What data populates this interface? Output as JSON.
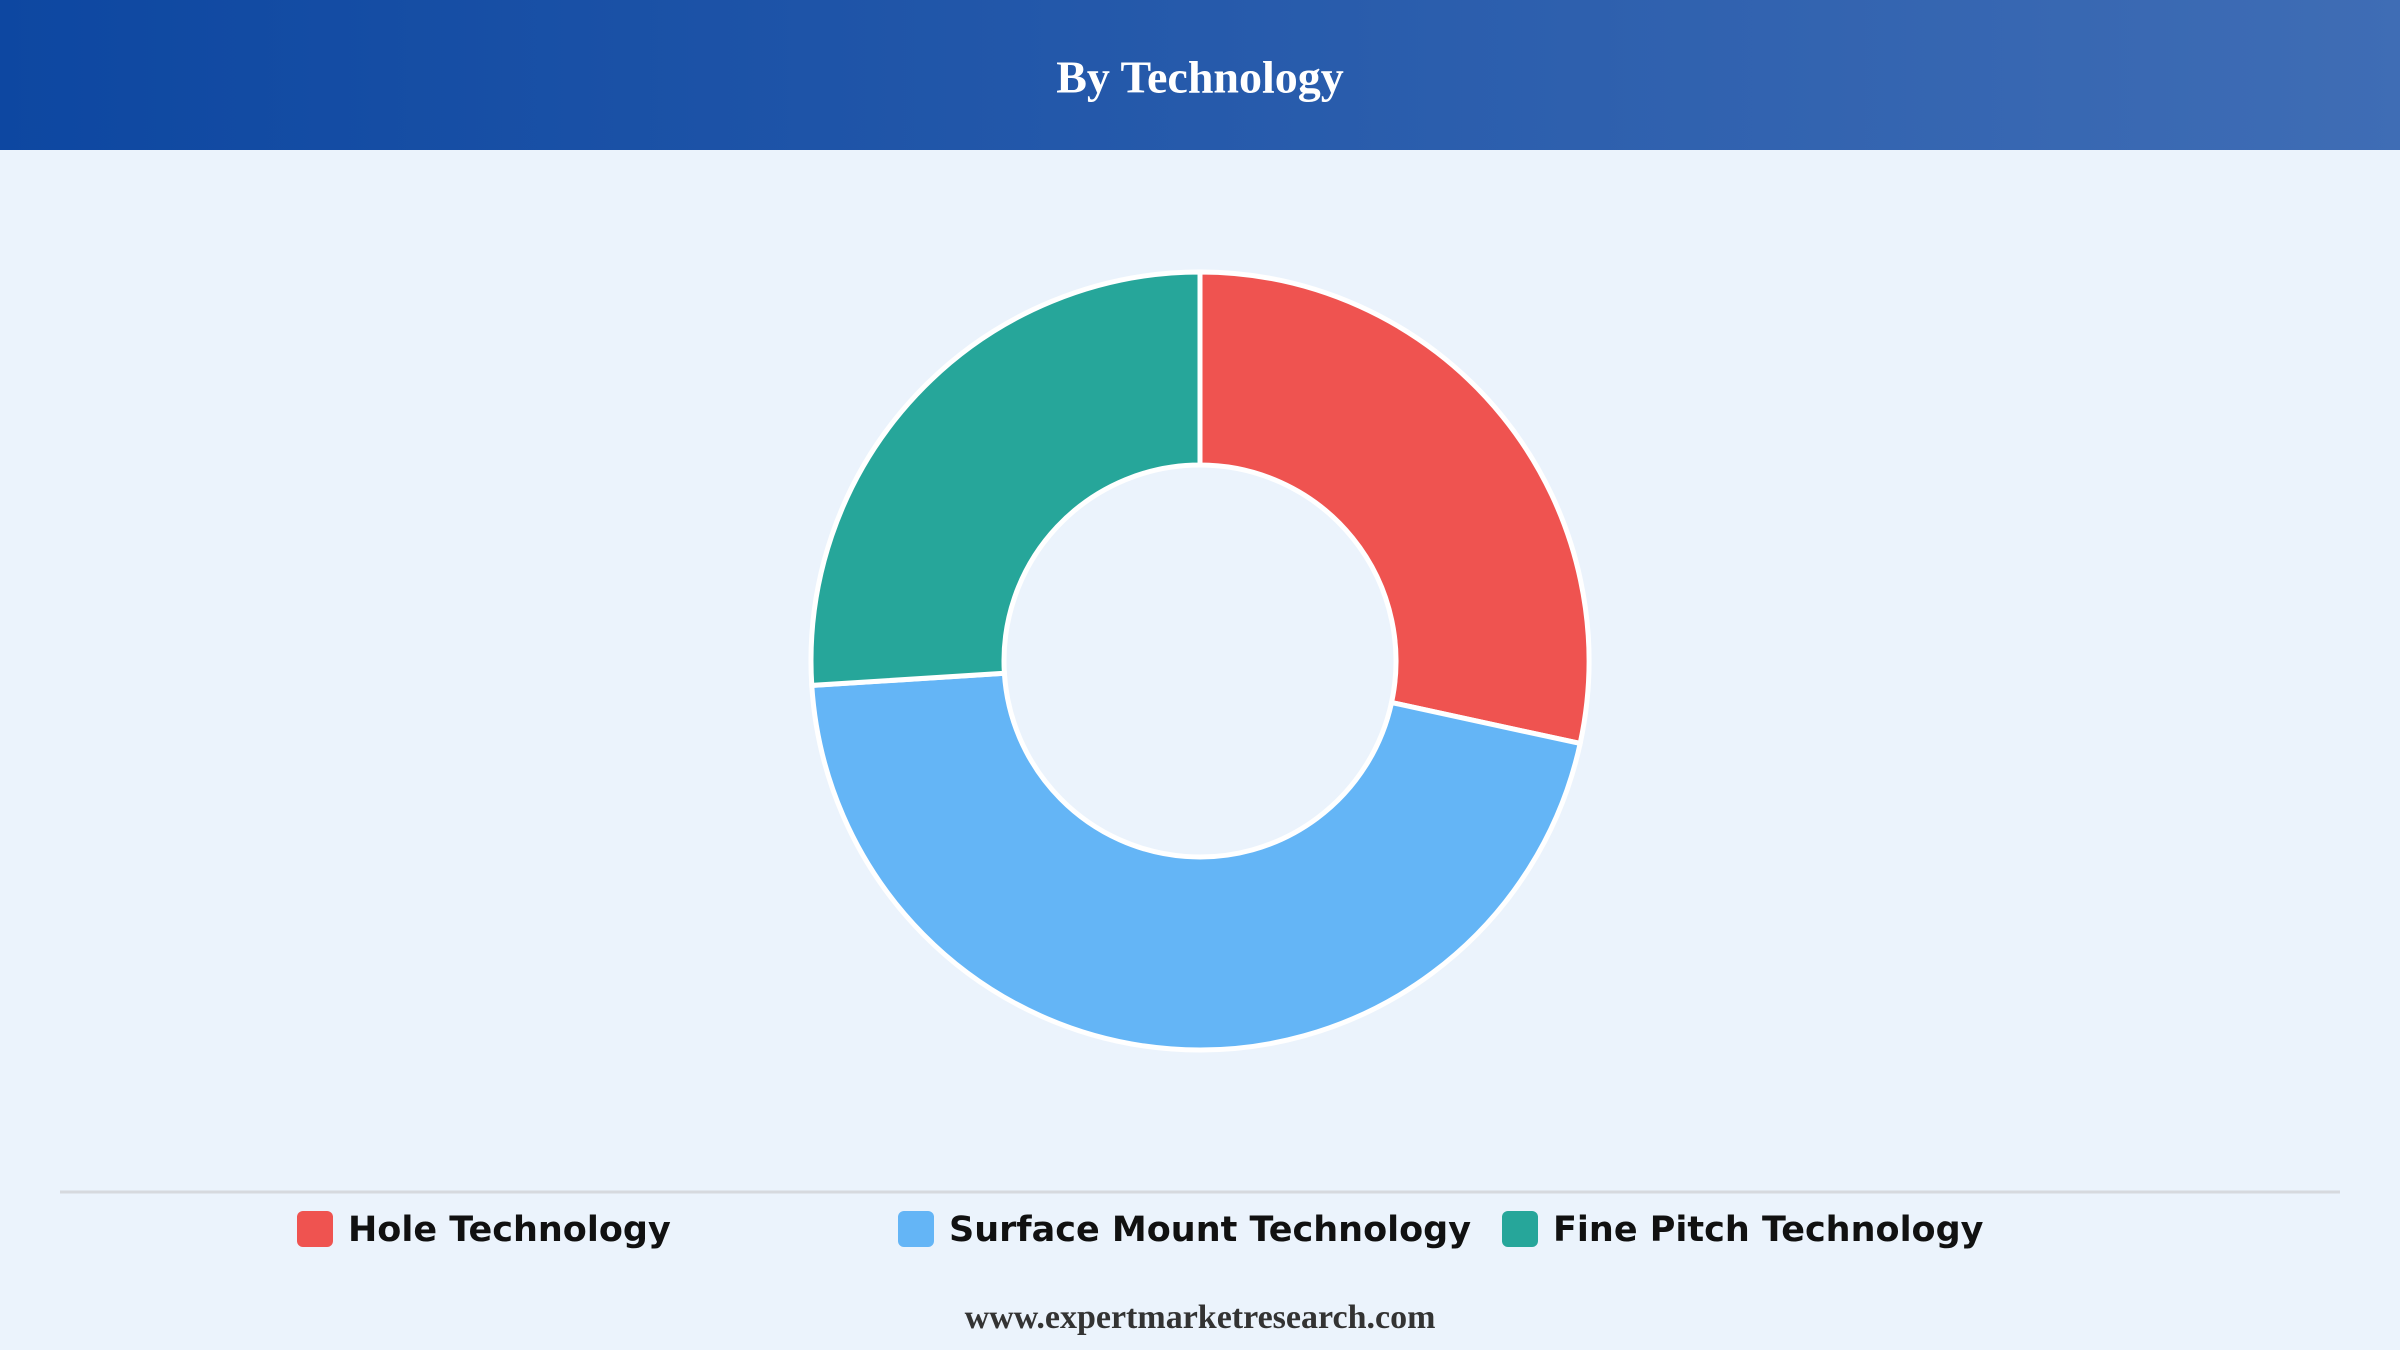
{
  "chart_data": {
    "type": "donut",
    "title": "By Technology",
    "categories": [
      "Hole Technology",
      "Surface Mount Technology",
      "Fine Pitch Technology"
    ],
    "values": [
      28.4,
      45.6,
      26
    ],
    "colors": [
      "#ef5350",
      "#64b5f6",
      "#26a69a"
    ],
    "footer": "www.expertmarketresearch.com"
  }
}
